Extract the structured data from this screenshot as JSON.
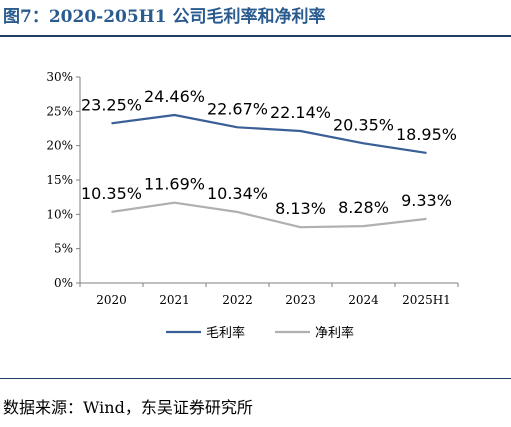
{
  "figure_title": "图7：2020-205H1 公司毛利率和净利率",
  "source_text": "数据来源：Wind，东吴证券研究所",
  "chart_data": {
    "type": "line",
    "categories": [
      "2020",
      "2021",
      "2022",
      "2023",
      "2024",
      "2025H1"
    ],
    "series": [
      {
        "name": "毛利率",
        "values": [
          23.25,
          24.46,
          22.67,
          22.14,
          20.35,
          18.95
        ],
        "color": "#3a5f96",
        "labels": [
          "23.25%",
          "24.46%",
          "22.67%",
          "22.14%",
          "20.35%",
          "18.95%"
        ]
      },
      {
        "name": "净利率",
        "values": [
          10.35,
          11.69,
          10.34,
          8.13,
          8.28,
          9.33
        ],
        "color": "#b0b0b0",
        "labels": [
          "10.35%",
          "11.69%",
          "10.34%",
          "8.13%",
          "8.28%",
          "9.33%"
        ]
      }
    ],
    "y_ticks": [
      "0%",
      "5%",
      "10%",
      "15%",
      "20%",
      "25%",
      "30%"
    ],
    "y_tick_values": [
      0,
      5,
      10,
      15,
      20,
      25,
      30
    ],
    "ylim": [
      0,
      30
    ],
    "grid": false,
    "legend": "bottom"
  }
}
